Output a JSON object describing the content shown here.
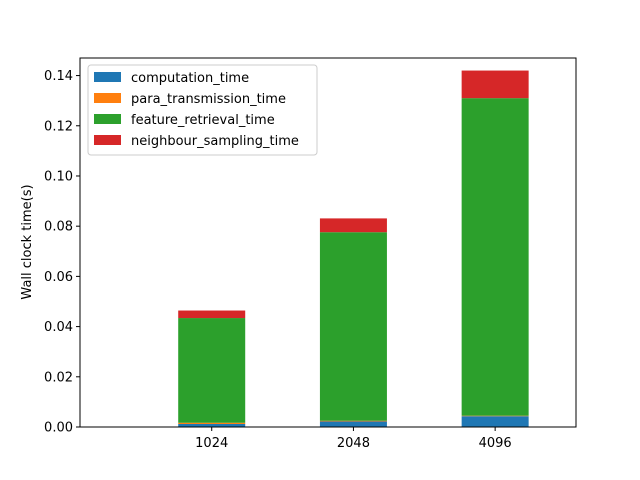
{
  "chart_data": {
    "type": "bar",
    "stacked": true,
    "categories": [
      "1024",
      "2048",
      "4096"
    ],
    "series": [
      {
        "name": "computation_time",
        "color": "#1f77b4",
        "values": [
          0.0012,
          0.0022,
          0.0043
        ]
      },
      {
        "name": "para_transmission_time",
        "color": "#ff7f0e",
        "values": [
          0.0005,
          0.0003,
          0.0002
        ]
      },
      {
        "name": "feature_retrieval_time",
        "color": "#2ca02c",
        "values": [
          0.0417,
          0.0751,
          0.1265
        ]
      },
      {
        "name": "neighbour_sampling_time",
        "color": "#d62728",
        "values": [
          0.003,
          0.0055,
          0.011
        ]
      }
    ],
    "xlabel": "",
    "ylabel": "Wall clock time(s)",
    "ylim": [
      0,
      0.147
    ],
    "yticks": [
      0.0,
      0.02,
      0.04,
      0.06,
      0.08,
      0.1,
      0.12,
      0.14
    ],
    "ytick_labels": [
      "0.00",
      "0.02",
      "0.04",
      "0.06",
      "0.08",
      "0.10",
      "0.12",
      "0.14"
    ],
    "grid": false,
    "legend_position": "top-left"
  }
}
